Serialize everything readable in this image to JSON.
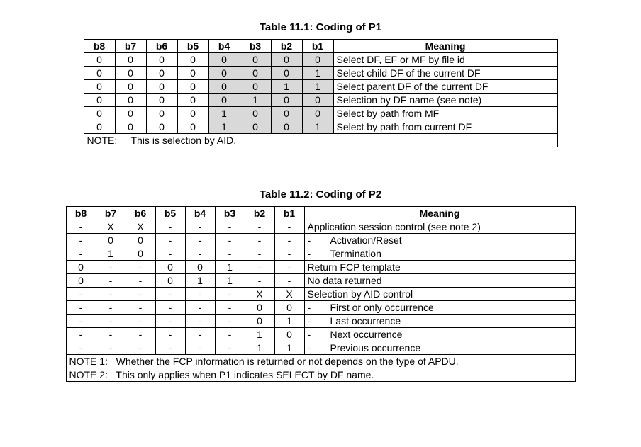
{
  "table1": {
    "title": "Table 11.1: Coding of P1",
    "headers": [
      "b8",
      "b7",
      "b6",
      "b5",
      "b4",
      "b3",
      "b2",
      "b1",
      "Meaning"
    ],
    "rows": [
      {
        "bits": [
          "0",
          "0",
          "0",
          "0",
          "0",
          "0",
          "0",
          "0"
        ],
        "shade": [
          false,
          false,
          false,
          false,
          true,
          true,
          true,
          true
        ],
        "meaning": "Select DF, EF or MF by file id"
      },
      {
        "bits": [
          "0",
          "0",
          "0",
          "0",
          "0",
          "0",
          "0",
          "1"
        ],
        "shade": [
          false,
          false,
          false,
          false,
          true,
          true,
          true,
          true
        ],
        "meaning": "Select child DF of the current DF"
      },
      {
        "bits": [
          "0",
          "0",
          "0",
          "0",
          "0",
          "0",
          "1",
          "1"
        ],
        "shade": [
          false,
          false,
          false,
          false,
          true,
          true,
          true,
          true
        ],
        "meaning": "Select parent DF of the current DF"
      },
      {
        "bits": [
          "0",
          "0",
          "0",
          "0",
          "0",
          "1",
          "0",
          "0"
        ],
        "shade": [
          false,
          false,
          false,
          false,
          true,
          true,
          true,
          true
        ],
        "meaning": "Selection by DF name (see note)"
      },
      {
        "bits": [
          "0",
          "0",
          "0",
          "0",
          "1",
          "0",
          "0",
          "0"
        ],
        "shade": [
          false,
          false,
          false,
          false,
          true,
          true,
          true,
          true
        ],
        "meaning": "Select by path from MF"
      },
      {
        "bits": [
          "0",
          "0",
          "0",
          "0",
          "1",
          "0",
          "0",
          "1"
        ],
        "shade": [
          false,
          false,
          false,
          false,
          true,
          true,
          true,
          true
        ],
        "meaning": "Select by path from current DF"
      }
    ],
    "note_label": "NOTE:",
    "note_text": "This is selection by AID."
  },
  "table2": {
    "title": "Table 11.2: Coding of P2",
    "headers": [
      "b8",
      "b7",
      "b6",
      "b5",
      "b4",
      "b3",
      "b2",
      "b1",
      "Meaning"
    ],
    "rows": [
      {
        "bits": [
          "-",
          "X",
          "X",
          "-",
          "-",
          "-",
          "-",
          "-"
        ],
        "meaning": "Application session control (see note 2)",
        "indent": false,
        "sub": false
      },
      {
        "bits": [
          "-",
          "0",
          "0",
          "-",
          "-",
          "-",
          "-",
          "-"
        ],
        "meaning": "Activation/Reset",
        "indent": true,
        "sub": true
      },
      {
        "bits": [
          "-",
          "1",
          "0",
          "-",
          "-",
          "-",
          "-",
          "-"
        ],
        "meaning": "Termination",
        "indent": true,
        "sub": true
      },
      {
        "bits": [
          "0",
          "-",
          "-",
          "0",
          "0",
          "1",
          "-",
          "-"
        ],
        "meaning": "Return FCP template",
        "indent": false,
        "sub": false
      },
      {
        "bits": [
          "0",
          "-",
          "-",
          "0",
          "1",
          "1",
          "-",
          "-"
        ],
        "meaning": "No data returned",
        "indent": false,
        "sub": false
      },
      {
        "bits": [
          "-",
          "-",
          "-",
          "-",
          "-",
          "-",
          "X",
          "X"
        ],
        "meaning": "Selection by AID control",
        "indent": false,
        "sub": false
      },
      {
        "bits": [
          "-",
          "-",
          "-",
          "-",
          "-",
          "-",
          "0",
          "0"
        ],
        "meaning": "First or only occurrence",
        "indent": true,
        "sub": true
      },
      {
        "bits": [
          "-",
          "-",
          "-",
          "-",
          "-",
          "-",
          "0",
          "1"
        ],
        "meaning": "Last occurrence",
        "indent": true,
        "sub": true
      },
      {
        "bits": [
          "-",
          "-",
          "-",
          "-",
          "-",
          "-",
          "1",
          "0"
        ],
        "meaning": "Next occurrence",
        "indent": true,
        "sub": true
      },
      {
        "bits": [
          "-",
          "-",
          "-",
          "-",
          "-",
          "-",
          "1",
          "1"
        ],
        "meaning": "Previous occurrence",
        "indent": true,
        "sub": true
      }
    ],
    "note1_label": "NOTE 1:",
    "note1_text": "Whether the FCP information is returned or not depends on the type of APDU.",
    "note2_label": "NOTE 2:",
    "note2_text": "This only applies when P1 indicates SELECT by DF name."
  },
  "colors": {
    "shaded_bg": "#d9d9d9",
    "border": "#000000",
    "text": "#000000",
    "background": "#ffffff"
  }
}
